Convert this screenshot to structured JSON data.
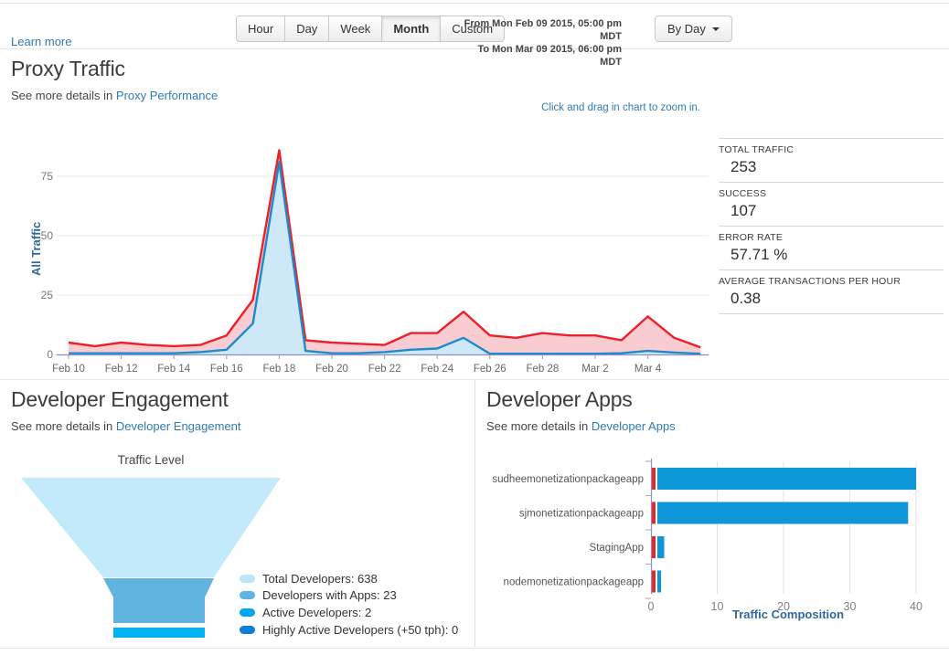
{
  "topbar": {
    "learn_more": "Learn more",
    "range_buttons": [
      "Hour",
      "Day",
      "Week",
      "Month",
      "Custom"
    ],
    "active_range": "Month",
    "from_label": "From Mon Feb 09 2015, 05:00 pm MDT",
    "to_label": "To Mon Mar 09 2015, 06:00 pm MDT",
    "group_by_label": "By Day"
  },
  "proxy_traffic": {
    "title": "Proxy Traffic",
    "subtitle_prefix": "See more details in",
    "subtitle_link": "Proxy Performance",
    "zoom_hint": "Click and drag in chart to zoom in.",
    "stats": [
      {
        "label": "TOTAL TRAFFIC",
        "value": "253"
      },
      {
        "label": "SUCCESS",
        "value": "107"
      },
      {
        "label": "ERROR RATE",
        "value": "57.71 %"
      },
      {
        "label": "AVERAGE TRANSACTIONS PER HOUR",
        "value": "0.38"
      }
    ]
  },
  "developer_engagement": {
    "title": "Developer Engagement",
    "subtitle_prefix": "See more details in",
    "subtitle_link": "Developer Engagement"
  },
  "developer_apps": {
    "title": "Developer Apps",
    "subtitle_prefix": "See more details in",
    "subtitle_link": "Developer Apps"
  },
  "colors": {
    "link_blue": "#2f7cb4",
    "axis_label_blue": "#31699b",
    "axis_line_purple": "#8f8cc4",
    "traffic_red": "#ee1f28",
    "traffic_red_fill": "#f9ccd2",
    "success_blue": "#1d8bcb",
    "success_blue_fill": "#cfe8f8",
    "bar_blue": "#0d97d9",
    "bar_red": "#e22b25"
  },
  "chart_data": [
    {
      "id": "proxy_traffic_chart",
      "type": "area",
      "ylabel": "All Traffic",
      "x": [
        "Feb 10",
        "Feb 11",
        "Feb 12",
        "Feb 13",
        "Feb 14",
        "Feb 15",
        "Feb 16",
        "Feb 17",
        "Feb 18",
        "Feb 19",
        "Feb 20",
        "Feb 21",
        "Feb 22",
        "Feb 23",
        "Feb 24",
        "Feb 25",
        "Feb 26",
        "Feb 27",
        "Feb 28",
        "Mar 1",
        "Mar 2",
        "Mar 3",
        "Mar 4",
        "Mar 5",
        "Mar 6"
      ],
      "x_tick_indices": [
        0,
        2,
        4,
        6,
        8,
        10,
        12,
        14,
        16,
        18,
        20,
        22
      ],
      "yticks": [
        0,
        25,
        50,
        75
      ],
      "ylim": [
        0,
        93
      ],
      "grid": true,
      "series": [
        {
          "name": "All Traffic",
          "color": "#ee1f28",
          "fill": "#f9ccd2",
          "values": [
            5,
            3.5,
            5,
            4,
            3.5,
            4,
            8,
            23,
            86,
            6,
            5,
            4.5,
            4,
            9,
            9,
            18,
            8,
            7,
            9,
            8,
            8,
            6,
            16,
            7,
            3
          ]
        },
        {
          "name": "Success",
          "color": "#1d8bcb",
          "fill": "#cfe8f8",
          "values": [
            0.5,
            0.5,
            0.5,
            0.5,
            0.5,
            1,
            2,
            13,
            81,
            1.5,
            0.5,
            0.5,
            1,
            2,
            2.5,
            7,
            0.3,
            0.3,
            0.3,
            0.3,
            0.3,
            0.5,
            1.5,
            0.8,
            0.3
          ]
        }
      ]
    },
    {
      "id": "developer_engagement_funnel",
      "type": "funnel",
      "title": "Traffic Level",
      "stages": [
        {
          "label": "Total Developers",
          "value": 638,
          "color": "#c3eafb",
          "legend_color": "#b9e6fa"
        },
        {
          "label": "Developers with Apps",
          "value": 23,
          "color": "#62b4e0",
          "legend_color": "#5fb4e2"
        },
        {
          "label": "Active Developers",
          "value": 2,
          "color": "#00b2f3",
          "legend_color": "#00a6f0"
        },
        {
          "label": "Highly Active Developers (+50 tph)",
          "value": 0,
          "color": "#0e7ed8",
          "legend_color": "#0e7ed8"
        }
      ]
    },
    {
      "id": "developer_apps_chart",
      "type": "bar",
      "orientation": "horizontal",
      "xlabel": "Traffic Composition",
      "categories": [
        "sudheemonetizationpackageapp",
        "sjmonetizationpackageapp",
        "StagingApp",
        "nodemonetizationpackageapp"
      ],
      "xticks": [
        0,
        10,
        20,
        30,
        40
      ],
      "xlim": [
        0,
        41.5
      ],
      "series": [
        {
          "name": "error",
          "color": "#e22b25",
          "values": [
            0.5,
            0.5,
            0.5,
            0.5
          ]
        },
        {
          "name": "traffic",
          "color": "#0d97d9",
          "values": [
            40,
            38.8,
            2,
            0.7
          ]
        }
      ]
    }
  ]
}
